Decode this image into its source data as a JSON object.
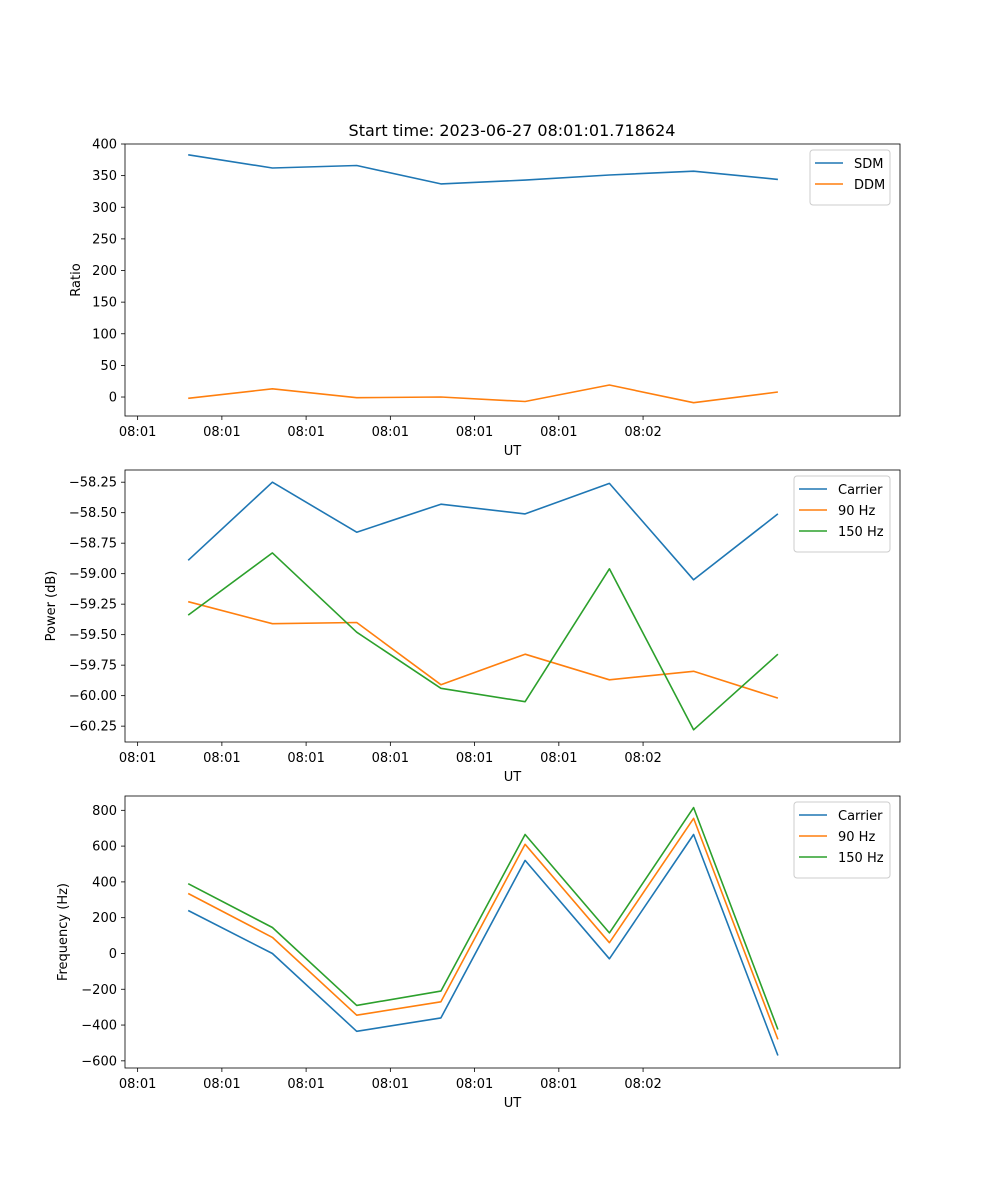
{
  "figure": {
    "title": "Start time: 2023-06-27 08:01:01.718624"
  },
  "chart_data": [
    {
      "type": "line",
      "xlabel": "UT",
      "ylabel": "Ratio",
      "x_tick_labels": [
        "08:01",
        "08:01",
        "08:01",
        "08:01",
        "08:01",
        "08:01",
        "08:02"
      ],
      "xlim": [
        0,
        9.2
      ],
      "ylim": [
        -30,
        400
      ],
      "y_ticks": [
        0,
        50,
        100,
        150,
        200,
        250,
        300,
        350,
        400
      ],
      "y_tick_labels": [
        "0",
        "50",
        "100",
        "150",
        "200",
        "250",
        "300",
        "350",
        "400"
      ],
      "legend_position": "top-right",
      "x": [
        0.75,
        1.75,
        2.75,
        3.75,
        4.75,
        5.75,
        6.75,
        7.75
      ],
      "series": [
        {
          "name": "SDM",
          "color": "#1f77b4",
          "values": [
            383,
            362,
            366,
            337,
            343,
            351,
            357,
            344
          ]
        },
        {
          "name": "DDM",
          "color": "#ff7f0e",
          "values": [
            -2,
            13,
            -1,
            0,
            -7,
            19,
            -9,
            8
          ]
        }
      ]
    },
    {
      "type": "line",
      "xlabel": "UT",
      "ylabel": "Power (dB)",
      "x_tick_labels": [
        "08:01",
        "08:01",
        "08:01",
        "08:01",
        "08:01",
        "08:01",
        "08:02"
      ],
      "xlim": [
        0,
        9.2
      ],
      "ylim": [
        -60.38,
        -58.15
      ],
      "y_ticks": [
        -58.25,
        -58.5,
        -58.75,
        -59.0,
        -59.25,
        -59.5,
        -59.75,
        -60.0,
        -60.25
      ],
      "y_tick_labels": [
        "−58.25",
        "−58.50",
        "−58.75",
        "−59.00",
        "−59.25",
        "−59.50",
        "−59.75",
        "−60.00",
        "−60.25"
      ],
      "legend_position": "top-right",
      "x": [
        0.75,
        1.75,
        2.75,
        3.75,
        4.75,
        5.75,
        6.75,
        7.75
      ],
      "series": [
        {
          "name": "Carrier",
          "color": "#1f77b4",
          "values": [
            -58.89,
            -58.25,
            -58.66,
            -58.43,
            -58.51,
            -58.26,
            -59.05,
            -58.51
          ]
        },
        {
          "name": "90 Hz",
          "color": "#ff7f0e",
          "values": [
            -59.23,
            -59.41,
            -59.4,
            -59.91,
            -59.66,
            -59.87,
            -59.8,
            -60.02
          ]
        },
        {
          "name": "150 Hz",
          "color": "#2ca02c",
          "values": [
            -59.34,
            -58.83,
            -59.48,
            -59.94,
            -60.05,
            -58.96,
            -60.28,
            -59.66
          ]
        }
      ]
    },
    {
      "type": "line",
      "xlabel": "UT",
      "ylabel": "Frequency (Hz)",
      "x_tick_labels": [
        "08:01",
        "08:01",
        "08:01",
        "08:01",
        "08:01",
        "08:01",
        "08:02"
      ],
      "xlim": [
        0,
        9.2
      ],
      "ylim": [
        -640,
        880
      ],
      "y_ticks": [
        800,
        600,
        400,
        200,
        0,
        -200,
        -400,
        -600
      ],
      "y_tick_labels": [
        "800",
        "600",
        "400",
        "200",
        "0",
        "−200",
        "−400",
        "−600"
      ],
      "legend_position": "top-right",
      "x": [
        0.75,
        1.75,
        2.75,
        3.75,
        4.75,
        5.75,
        6.75,
        7.75
      ],
      "series": [
        {
          "name": "Carrier",
          "color": "#1f77b4",
          "values": [
            240,
            0,
            -435,
            -360,
            520,
            -30,
            665,
            -570
          ]
        },
        {
          "name": "90 Hz",
          "color": "#ff7f0e",
          "values": [
            335,
            90,
            -345,
            -270,
            610,
            60,
            755,
            -480
          ]
        },
        {
          "name": "150 Hz",
          "color": "#2ca02c",
          "values": [
            390,
            145,
            -290,
            -210,
            665,
            115,
            815,
            -425
          ]
        }
      ]
    }
  ]
}
